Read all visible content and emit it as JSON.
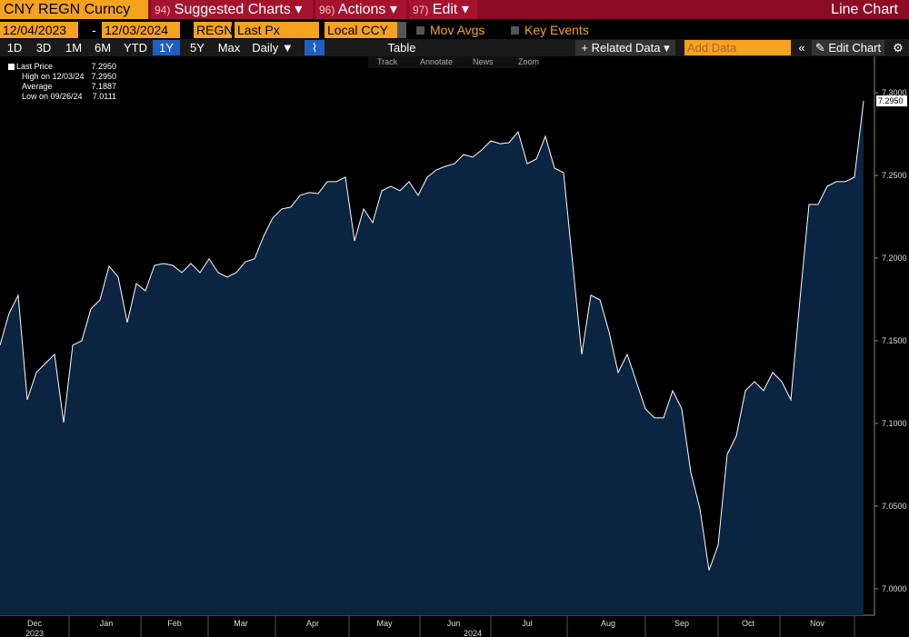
{
  "toolbar": {
    "security": "CNY REGN Curncy",
    "menus": [
      {
        "num": "94)",
        "label": "Suggested Charts"
      },
      {
        "num": "96)",
        "label": "Actions"
      },
      {
        "num": "97)",
        "label": "Edit"
      }
    ],
    "chart_kind": "Line Chart"
  },
  "fields": {
    "start_date": "12/04/2023",
    "separator": "-",
    "end_date": "12/03/2024",
    "ticker": "REGN",
    "field": "Last Px",
    "currency": "Local CCY",
    "mov_avgs": "Mov Avgs",
    "key_events": "Key Events"
  },
  "periods": [
    "1D",
    "3D",
    "1M",
    "6M",
    "YTD",
    "1Y",
    "5Y",
    "Max"
  ],
  "controls": {
    "frequency": "Daily",
    "table": "Table",
    "related": "Related Data",
    "add_data": "Add Data",
    "edit_chart": "Edit Chart"
  },
  "tools": [
    "Track",
    "Annotate",
    "News",
    "Zoom"
  ],
  "legend": [
    {
      "label": "Last Price",
      "value": "7.2950"
    },
    {
      "label": "High on 12/03/24",
      "value": "7.2950"
    },
    {
      "label": "Average",
      "value": "7.1887"
    },
    {
      "label": "Low on 09/26/24",
      "value": "7.0111"
    }
  ],
  "chart_data": {
    "type": "area",
    "color": "#ffffff",
    "fill": "#0b2442",
    "values": [
      7.1473,
      7.1665,
      7.1775,
      7.1143,
      7.1308,
      7.1363,
      7.1418,
      7.1005,
      7.1473,
      7.15,
      7.1692,
      7.1747,
      7.1951,
      7.1885,
      7.161,
      7.1846,
      7.1802,
      7.1956,
      7.1967,
      7.1956,
      7.1912,
      7.1967,
      7.1912,
      7.1995,
      7.1912,
      7.1885,
      7.1912,
      7.1978,
      7.1995,
      7.2132,
      7.2242,
      7.2297,
      7.2308,
      7.2379,
      7.2396,
      7.239,
      7.2462,
      7.2462,
      7.2489,
      7.2104,
      7.2297,
      7.2214,
      7.2407,
      7.2434,
      7.2407,
      7.2462,
      7.2379,
      7.2489,
      7.2533,
      7.2555,
      7.2571,
      7.2626,
      7.261,
      7.2654,
      7.2709,
      7.2692,
      7.2698,
      7.2764,
      7.2571,
      7.2599,
      7.2736,
      7.2544,
      7.2516,
      7.1967,
      7.1418,
      7.1775,
      7.1747,
      7.1555,
      7.1308,
      7.1418,
      7.1253,
      7.1088,
      7.1033,
      7.1033,
      7.1198,
      7.1088,
      7.0703,
      7.0484,
      7.0111,
      7.0264,
      7.0813,
      7.0923,
      7.1198,
      7.1253,
      7.1198,
      7.1308,
      7.1253,
      7.1143,
      7.1747,
      7.2324,
      7.2324,
      7.2434,
      7.2462,
      7.2462,
      7.2489,
      7.295
    ],
    "last_label": "7.2950",
    "ylim": [
      6.984,
      7.322
    ],
    "yticks": [
      {
        "value": 7.0,
        "label": "7.0000"
      },
      {
        "value": 7.05,
        "label": "7.0500"
      },
      {
        "value": 7.1,
        "label": "7.1000"
      },
      {
        "value": 7.15,
        "label": "7.1500"
      },
      {
        "value": 7.2,
        "label": "7.2000"
      },
      {
        "value": 7.25,
        "label": "7.2500"
      },
      {
        "value": 7.3,
        "label": "7.3000"
      }
    ],
    "months": [
      "Dec",
      "Jan",
      "Feb",
      "Mar",
      "Apr",
      "May",
      "Jun",
      "Jul",
      "Aug",
      "Sep",
      "Oct",
      "Nov"
    ],
    "years": [
      "2023",
      "2024"
    ]
  }
}
